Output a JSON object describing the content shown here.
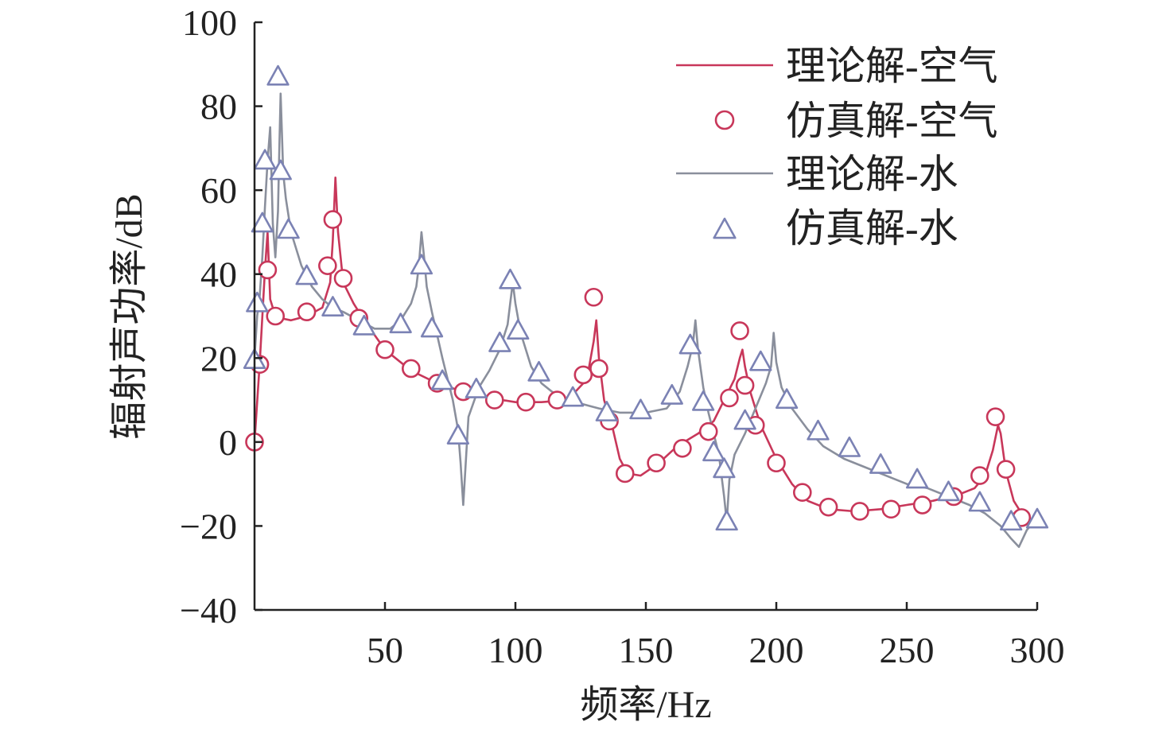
{
  "chart_data": {
    "type": "line",
    "xlabel": "频率/Hz",
    "ylabel": "辐射声功率/dB",
    "xlim": [
      0,
      300
    ],
    "ylim": [
      -40,
      100
    ],
    "x_ticks": [
      50,
      100,
      150,
      200,
      250,
      300
    ],
    "x_tick_labels": [
      "50",
      "100",
      "150",
      "200",
      "250",
      "300"
    ],
    "y_ticks": [
      -40,
      -20,
      0,
      20,
      40,
      60,
      80,
      100
    ],
    "y_tick_labels": [
      "−40",
      "−20",
      "0",
      "20",
      "40",
      "60",
      "80",
      "100"
    ],
    "grid": false,
    "legend_position": "top-right",
    "series": [
      {
        "name": "理论解-空气",
        "kind": "line",
        "color": "#c8375a",
        "x": [
          0,
          2,
          4,
          5,
          6,
          8,
          10,
          14,
          20,
          26,
          29,
          30,
          31,
          32,
          34,
          38,
          42,
          50,
          60,
          70,
          80,
          90,
          100,
          110,
          120,
          126,
          128,
          130,
          131,
          132,
          134,
          137,
          140,
          143,
          148,
          155,
          162,
          170,
          176,
          180,
          184,
          186,
          187,
          188,
          190,
          194,
          200,
          206,
          212,
          220,
          230,
          240,
          250,
          260,
          270,
          276,
          280,
          283,
          285,
          286,
          288,
          291,
          294,
          297,
          300
        ],
        "y": [
          0,
          19,
          41,
          50,
          34,
          30,
          29.5,
          29,
          30,
          32,
          38,
          48,
          63,
          50,
          38,
          33,
          29,
          22,
          17,
          14,
          12,
          10.5,
          9.5,
          9.5,
          10,
          14,
          17,
          24,
          29,
          20,
          10,
          4,
          -4,
          -7.5,
          -8,
          -5,
          -1,
          2,
          5,
          10,
          15,
          20,
          22,
          18,
          12,
          4,
          -4,
          -10,
          -14,
          -16,
          -16.5,
          -16,
          -15,
          -14,
          -12.5,
          -11,
          -8,
          -2,
          4,
          2,
          -7,
          -14,
          -17,
          -19,
          -20
        ]
      },
      {
        "name": "仿真解-空气",
        "kind": "markers",
        "marker": "circle",
        "color": "#c8375a",
        "x": [
          0,
          2,
          5,
          8,
          20,
          28,
          30,
          34,
          40,
          50,
          60,
          70,
          80,
          92,
          104,
          116,
          126,
          130,
          132,
          136,
          142,
          154,
          164,
          174,
          182,
          186,
          188,
          192,
          200,
          210,
          220,
          232,
          244,
          256,
          268,
          278,
          284,
          288,
          294
        ],
        "y": [
          0,
          18.5,
          41,
          30,
          31,
          42,
          53,
          39,
          29.5,
          22,
          17.5,
          14,
          12,
          10,
          9.5,
          10,
          16,
          34.5,
          17.5,
          5,
          -7.5,
          -5,
          -1.5,
          2.5,
          10.5,
          26.5,
          13.5,
          4,
          -5,
          -12,
          -15.5,
          -16.5,
          -16,
          -15,
          -13,
          -8,
          6,
          -6.5,
          -18
        ]
      },
      {
        "name": "理论解-水",
        "kind": "line",
        "color": "#8a8f9c",
        "x": [
          0,
          1,
          2,
          3,
          4,
          5,
          6,
          7,
          8,
          9,
          9.5,
          10,
          11,
          12,
          14,
          18,
          22,
          26,
          30,
          34,
          40,
          46,
          52,
          56,
          60,
          62,
          63,
          64,
          65,
          66,
          68,
          72,
          76,
          78,
          79,
          80,
          82,
          86,
          90,
          94,
          97,
          98,
          99,
          100,
          102,
          106,
          110,
          116,
          120,
          126,
          132,
          140,
          150,
          158,
          163,
          166,
          168,
          169,
          170,
          172,
          174,
          176,
          178,
          179,
          180,
          181,
          182,
          184,
          188,
          192,
          196,
          198,
          199,
          200,
          202,
          206,
          212,
          218,
          226,
          234,
          242,
          250,
          258,
          266,
          274,
          280,
          286,
          290,
          293,
          296,
          300
        ],
        "y": [
          20,
          30,
          35,
          44,
          56,
          67,
          75,
          52,
          44,
          55,
          70,
          83,
          64,
          58,
          50,
          42,
          37,
          34,
          32,
          31,
          29,
          27,
          27,
          29,
          33,
          37,
          42,
          50,
          44,
          37,
          31,
          20,
          10,
          3,
          -5,
          -15,
          6,
          13,
          17,
          22,
          28,
          33,
          38,
          33,
          26,
          18,
          14,
          11,
          10,
          9,
          8,
          7,
          7,
          8,
          12,
          18,
          23,
          29,
          22,
          13,
          7,
          2,
          -3,
          -8,
          -13,
          -19,
          -9,
          -3,
          2,
          8,
          14,
          18,
          26,
          19,
          13,
          8,
          3,
          -1,
          -4,
          -6,
          -8,
          -10,
          -11,
          -13,
          -15,
          -17,
          -20,
          -23,
          -25,
          -21,
          -18
        ]
      },
      {
        "name": "仿真解-水",
        "kind": "markers",
        "marker": "triangle",
        "color": "#7b82b4",
        "x": [
          0,
          1,
          3,
          4,
          9,
          10,
          13,
          20,
          30,
          42,
          56,
          64,
          68,
          72,
          78,
          85,
          94,
          98,
          101,
          109,
          122,
          135,
          148,
          160,
          167,
          172,
          176,
          180,
          181,
          188,
          194,
          204,
          216,
          228,
          240,
          254,
          266,
          278,
          290,
          300
        ],
        "y": [
          19.5,
          33,
          52,
          67,
          87,
          64.5,
          50.5,
          39.5,
          32,
          27.5,
          28,
          42,
          27,
          14.5,
          1.5,
          12.5,
          23.5,
          38.5,
          26.5,
          16.5,
          10.5,
          7,
          7.5,
          11,
          23,
          9.5,
          -2.5,
          -6.5,
          -19,
          5,
          19,
          10,
          2.5,
          -1.5,
          -5.5,
          -9,
          -12,
          -14.5,
          -19,
          -18.5
        ]
      }
    ]
  }
}
